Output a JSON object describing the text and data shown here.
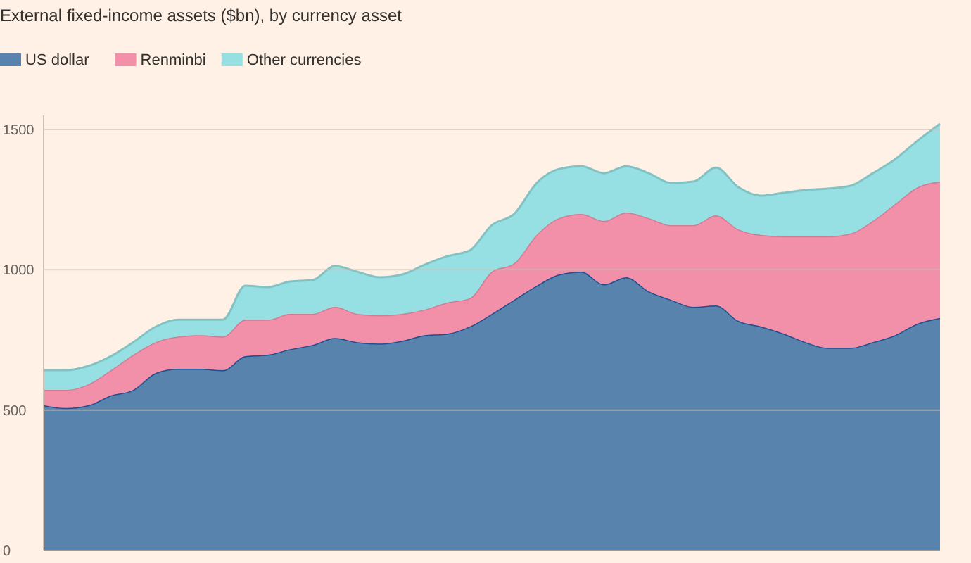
{
  "chart_data": {
    "type": "area",
    "stacked": true,
    "title": "External fixed-income assets ($bn), by currency asset",
    "categories": [
      null,
      null,
      null,
      null,
      null,
      null,
      null,
      null,
      null,
      null,
      null,
      null,
      null,
      null,
      null,
      null,
      null,
      null,
      null,
      null,
      null,
      null,
      null,
      null,
      null,
      null,
      null,
      null,
      null,
      null,
      null,
      null,
      null,
      null,
      null,
      null,
      null,
      null,
      null,
      null,
      null
    ],
    "series": [
      {
        "name": "US dollar",
        "color": "#5783ad",
        "values": [
          517,
          507,
          517,
          552,
          572,
          632,
          647,
          647,
          642,
          692,
          697,
          717,
          732,
          757,
          742,
          737,
          747,
          767,
          772,
          797,
          843,
          893,
          943,
          983,
          993,
          948,
          973,
          923,
          893,
          868,
          873,
          818,
          798,
          773,
          742,
          722,
          722,
          742,
          767,
          808,
          828
        ]
      },
      {
        "name": "Renminbi",
        "color": "#f28fa9",
        "values": [
          55,
          65,
          75,
          90,
          125,
          110,
          115,
          120,
          120,
          130,
          125,
          126,
          111,
          111,
          101,
          101,
          96,
          91,
          111,
          101,
          150,
          130,
          181,
          201,
          206,
          226,
          231,
          261,
          266,
          291,
          321,
          326,
          326,
          346,
          377,
          397,
          407,
          432,
          467,
          486,
          486
        ]
      },
      {
        "name": "Other currencies",
        "color": "#96e0e3",
        "values": [
          70,
          70,
          65,
          50,
          45,
          55,
          60,
          55,
          60,
          121,
          116,
          115,
          120,
          145,
          150,
          135,
          140,
          160,
          165,
          170,
          166,
          176,
          185,
          175,
          170,
          170,
          165,
          160,
          150,
          155,
          170,
          150,
          140,
          155,
          165,
          170,
          170,
          170,
          160,
          166,
          206
        ]
      }
    ],
    "ylim": [
      0,
      1550
    ],
    "yticks": [
      0,
      500,
      1000,
      1500
    ],
    "grid": "y",
    "legend": "top left",
    "tick_labels": "y"
  }
}
